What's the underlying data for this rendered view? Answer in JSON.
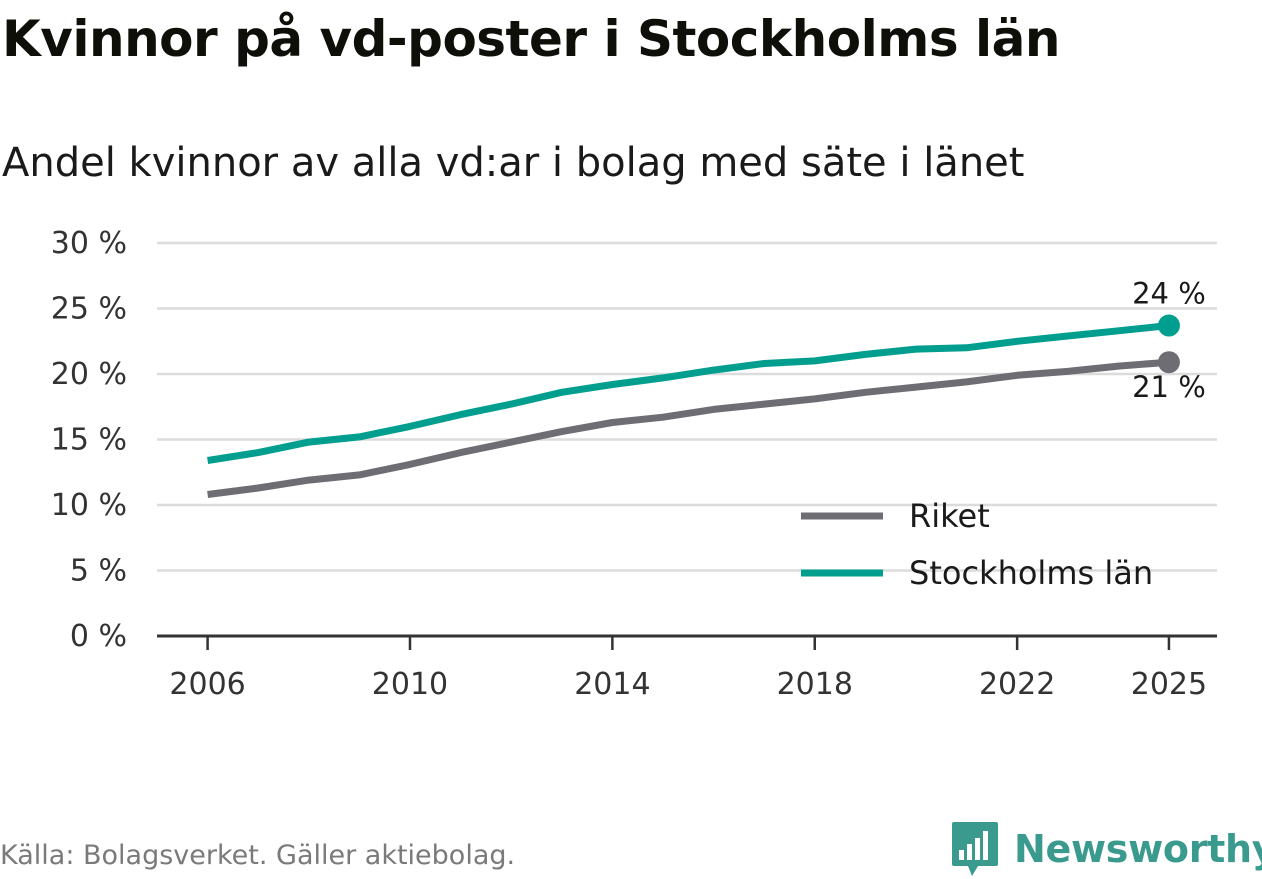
{
  "title": "Kvinnor på vd-poster i Stockholms län",
  "subtitle": "Andel kvinnor av alla vd:ar i bolag med säte i länet",
  "source": "Källa: Bolagsverket. Gäller aktiebolag.",
  "brand": {
    "name": "Newsworthy",
    "logo_icon": "bar-chart-icon",
    "color": "#3a9a8e"
  },
  "chart_data": {
    "type": "line",
    "title": "Kvinnor på vd-poster i Stockholms län",
    "subtitle": "Andel kvinnor av alla vd:ar i bolag med säte i länet",
    "xlabel": "",
    "ylabel": "",
    "x": [
      2006,
      2007,
      2008,
      2009,
      2010,
      2011,
      2012,
      2013,
      2014,
      2015,
      2016,
      2017,
      2018,
      2019,
      2020,
      2021,
      2022,
      2023,
      2024,
      2025
    ],
    "x_ticks": [
      "2006",
      "2010",
      "2014",
      "2018",
      "2022",
      "2025"
    ],
    "x_tick_values": [
      2006,
      2010,
      2014,
      2018,
      2022,
      2025
    ],
    "xlim": [
      2005,
      2025.95
    ],
    "ylim": [
      0,
      30
    ],
    "y_ticks": [
      "0 %",
      "5 %",
      "10 %",
      "15 %",
      "20 %",
      "25 %",
      "30 %"
    ],
    "y_tick_values": [
      0,
      5,
      10,
      15,
      20,
      25,
      30
    ],
    "grid": true,
    "legend_position": "bottom-right",
    "series": [
      {
        "name": "Riket",
        "color": "#6e6d73",
        "values": [
          10.8,
          11.3,
          11.9,
          12.3,
          13.1,
          14.0,
          14.8,
          15.6,
          16.3,
          16.7,
          17.3,
          17.7,
          18.1,
          18.6,
          19.0,
          19.4,
          19.9,
          20.2,
          20.6,
          20.9
        ],
        "end_label": "21 %",
        "end_label_position": "below"
      },
      {
        "name": "Stockholms län",
        "color": "#009e8e",
        "values": [
          13.4,
          14.0,
          14.8,
          15.2,
          16.0,
          16.9,
          17.7,
          18.6,
          19.2,
          19.7,
          20.3,
          20.8,
          21.0,
          21.5,
          21.9,
          22.0,
          22.5,
          22.9,
          23.3,
          23.7
        ],
        "end_label": "24 %",
        "end_label_position": "above"
      }
    ]
  }
}
